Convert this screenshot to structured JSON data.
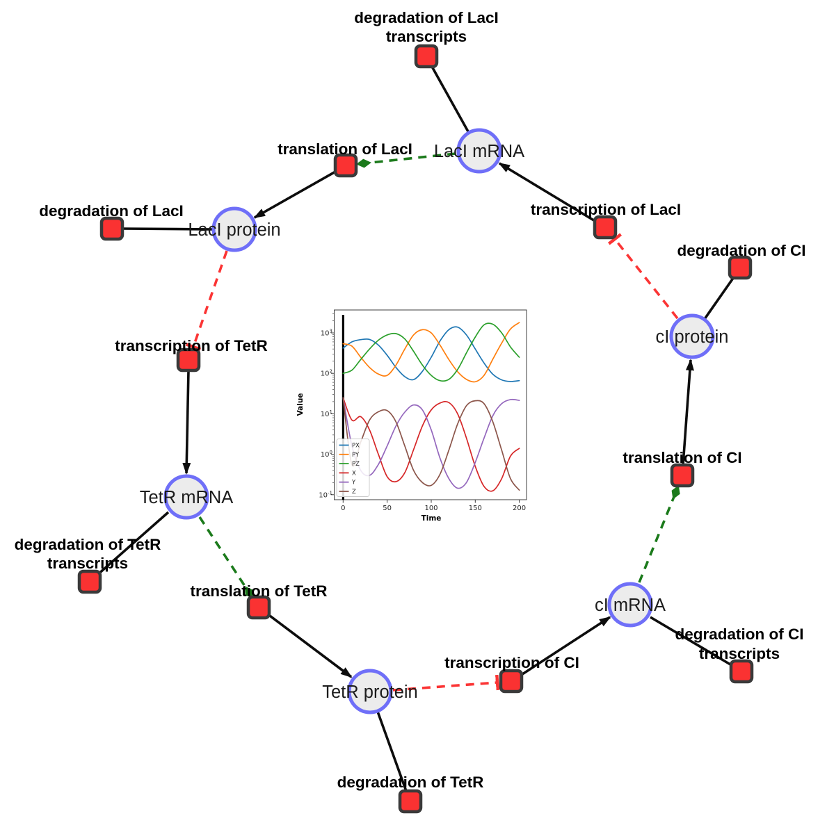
{
  "network": {
    "colors": {
      "species_fill": "#ececec",
      "species_border": "#6f6ff8",
      "reaction_fill": "#fa3232",
      "reaction_border": "#3a3a3a",
      "edge_black": "#0d0d0d",
      "modifier_green": "#1b7a1b",
      "inhibition_red": "#fb3434"
    },
    "species": [
      {
        "id": "laci-mrna",
        "label": "LacI mRNA"
      },
      {
        "id": "laci-protein",
        "label": "LacI protein"
      },
      {
        "id": "ci-protein",
        "label": "cI protein"
      },
      {
        "id": "tetr-mrna",
        "label": "TetR mRNA"
      },
      {
        "id": "tetr-protein",
        "label": "TetR protein"
      },
      {
        "id": "ci-mrna",
        "label": "cI mRNA"
      }
    ],
    "reactions": [
      {
        "id": "deg-laci-transcripts",
        "label_line1": "degradation of LacI",
        "label_line2": "transcripts"
      },
      {
        "id": "translation-laci",
        "label": "translation of LacI"
      },
      {
        "id": "deg-laci",
        "label": "degradation of LacI"
      },
      {
        "id": "transcription-laci",
        "label": "transcription of LacI"
      },
      {
        "id": "deg-ci",
        "label": "degradation of CI"
      },
      {
        "id": "transcription-tetr",
        "label": "transcription of TetR"
      },
      {
        "id": "translation-ci",
        "label": "translation of CI"
      },
      {
        "id": "deg-tetr-transcripts",
        "label_line1": "degradation of TetR",
        "label_line2": "transcripts"
      },
      {
        "id": "translation-tetr",
        "label": "translation of TetR"
      },
      {
        "id": "transcription-ci",
        "label": "transcription of CI"
      },
      {
        "id": "deg-ci-transcripts",
        "label_line1": "degradation of CI",
        "label_line2": "transcripts"
      },
      {
        "id": "deg-tetr",
        "label": "degradation of TetR"
      }
    ],
    "edges": [
      {
        "from": "LacI mRNA",
        "to": "degradation of LacI transcripts",
        "type": "consumption"
      },
      {
        "from": "LacI mRNA",
        "to": "translation of LacI",
        "type": "modifier"
      },
      {
        "from": "translation of LacI",
        "to": "LacI protein",
        "type": "production"
      },
      {
        "from": "transcription of LacI",
        "to": "LacI mRNA",
        "type": "production"
      },
      {
        "from": "LacI protein",
        "to": "degradation of LacI",
        "type": "consumption"
      },
      {
        "from": "LacI protein",
        "to": "transcription of TetR",
        "type": "inhibition"
      },
      {
        "from": "transcription of TetR",
        "to": "TetR mRNA",
        "type": "production"
      },
      {
        "from": "TetR mRNA",
        "to": "degradation of TetR transcripts",
        "type": "consumption"
      },
      {
        "from": "TetR mRNA",
        "to": "translation of TetR",
        "type": "modifier"
      },
      {
        "from": "translation of TetR",
        "to": "TetR protein",
        "type": "production"
      },
      {
        "from": "TetR protein",
        "to": "degradation of TetR",
        "type": "consumption"
      },
      {
        "from": "TetR protein",
        "to": "transcription of CI",
        "type": "inhibition"
      },
      {
        "from": "transcription of CI",
        "to": "cI mRNA",
        "type": "production"
      },
      {
        "from": "cI mRNA",
        "to": "degradation of CI transcripts",
        "type": "consumption"
      },
      {
        "from": "cI mRNA",
        "to": "translation of CI",
        "type": "modifier"
      },
      {
        "from": "translation of CI",
        "to": "cI protein",
        "type": "production"
      },
      {
        "from": "cI protein",
        "to": "degradation of CI",
        "type": "consumption"
      },
      {
        "from": "cI protein",
        "to": "transcription of LacI",
        "type": "inhibition"
      }
    ]
  },
  "chart_data": {
    "type": "line",
    "xlabel": "Time",
    "ylabel": "Value",
    "yscale": "log",
    "grid": false,
    "legend_position": "lower left",
    "xlim": [
      -10,
      208
    ],
    "ylim": [
      0.08,
      3700
    ],
    "xticks": [
      "0",
      "50",
      "100",
      "150",
      "200"
    ],
    "yticks": [
      {
        "base": "10",
        "exp": "3"
      },
      {
        "base": "10",
        "exp": "2"
      },
      {
        "base": "10",
        "exp": "1"
      },
      {
        "base": "10",
        "exp": "0"
      },
      {
        "base": "10",
        "exp": "-1"
      }
    ],
    "t": [
      0,
      10,
      20,
      30,
      40,
      50,
      60,
      70,
      80,
      90,
      100,
      110,
      120,
      130,
      140,
      150,
      160,
      170,
      180,
      190,
      200
    ],
    "series": [
      {
        "name": "PX",
        "color": "#1f77b4",
        "values": [
          420,
          600,
          680,
          690,
          500,
          280,
          140,
          83,
          70,
          112,
          250,
          630,
          1200,
          1390,
          890,
          400,
          180,
          95,
          69,
          63,
          66
        ]
      },
      {
        "name": "PY",
        "color": "#ff7f0e",
        "values": [
          540,
          470,
          250,
          140,
          96,
          89,
          160,
          400,
          890,
          1200,
          1000,
          500,
          220,
          110,
          71,
          62,
          89,
          225,
          560,
          1250,
          1800
        ]
      },
      {
        "name": "PZ",
        "color": "#2ca02c",
        "values": [
          100,
          120,
          220,
          400,
          660,
          890,
          960,
          710,
          350,
          160,
          89,
          66,
          71,
          125,
          320,
          790,
          1580,
          1640,
          1000,
          450,
          250
        ]
      },
      {
        "name": "X",
        "color": "#d62728",
        "values": [
          25,
          7,
          8.5,
          4,
          1.0,
          0.28,
          0.21,
          0.35,
          1.3,
          5,
          12.5,
          18.5,
          19,
          10,
          2.5,
          0.5,
          0.16,
          0.125,
          0.25,
          0.9,
          1.4
        ]
      },
      {
        "name": "Y",
        "color": "#9467bd",
        "values": [
          25,
          1.6,
          0.4,
          0.3,
          0.56,
          1.6,
          5,
          11,
          16.5,
          12.5,
          4,
          0.8,
          0.25,
          0.145,
          0.2,
          0.63,
          2.5,
          9,
          17.8,
          22.5,
          21.5
        ]
      },
      {
        "name": "Z",
        "color": "#8c564b",
        "values": [
          25,
          0.55,
          2.0,
          7,
          11.2,
          12,
          6.3,
          1.6,
          0.4,
          0.2,
          0.17,
          0.32,
          1.26,
          5.6,
          15.8,
          21,
          17.8,
          6.3,
          1.26,
          0.25,
          0.13
        ]
      }
    ]
  }
}
